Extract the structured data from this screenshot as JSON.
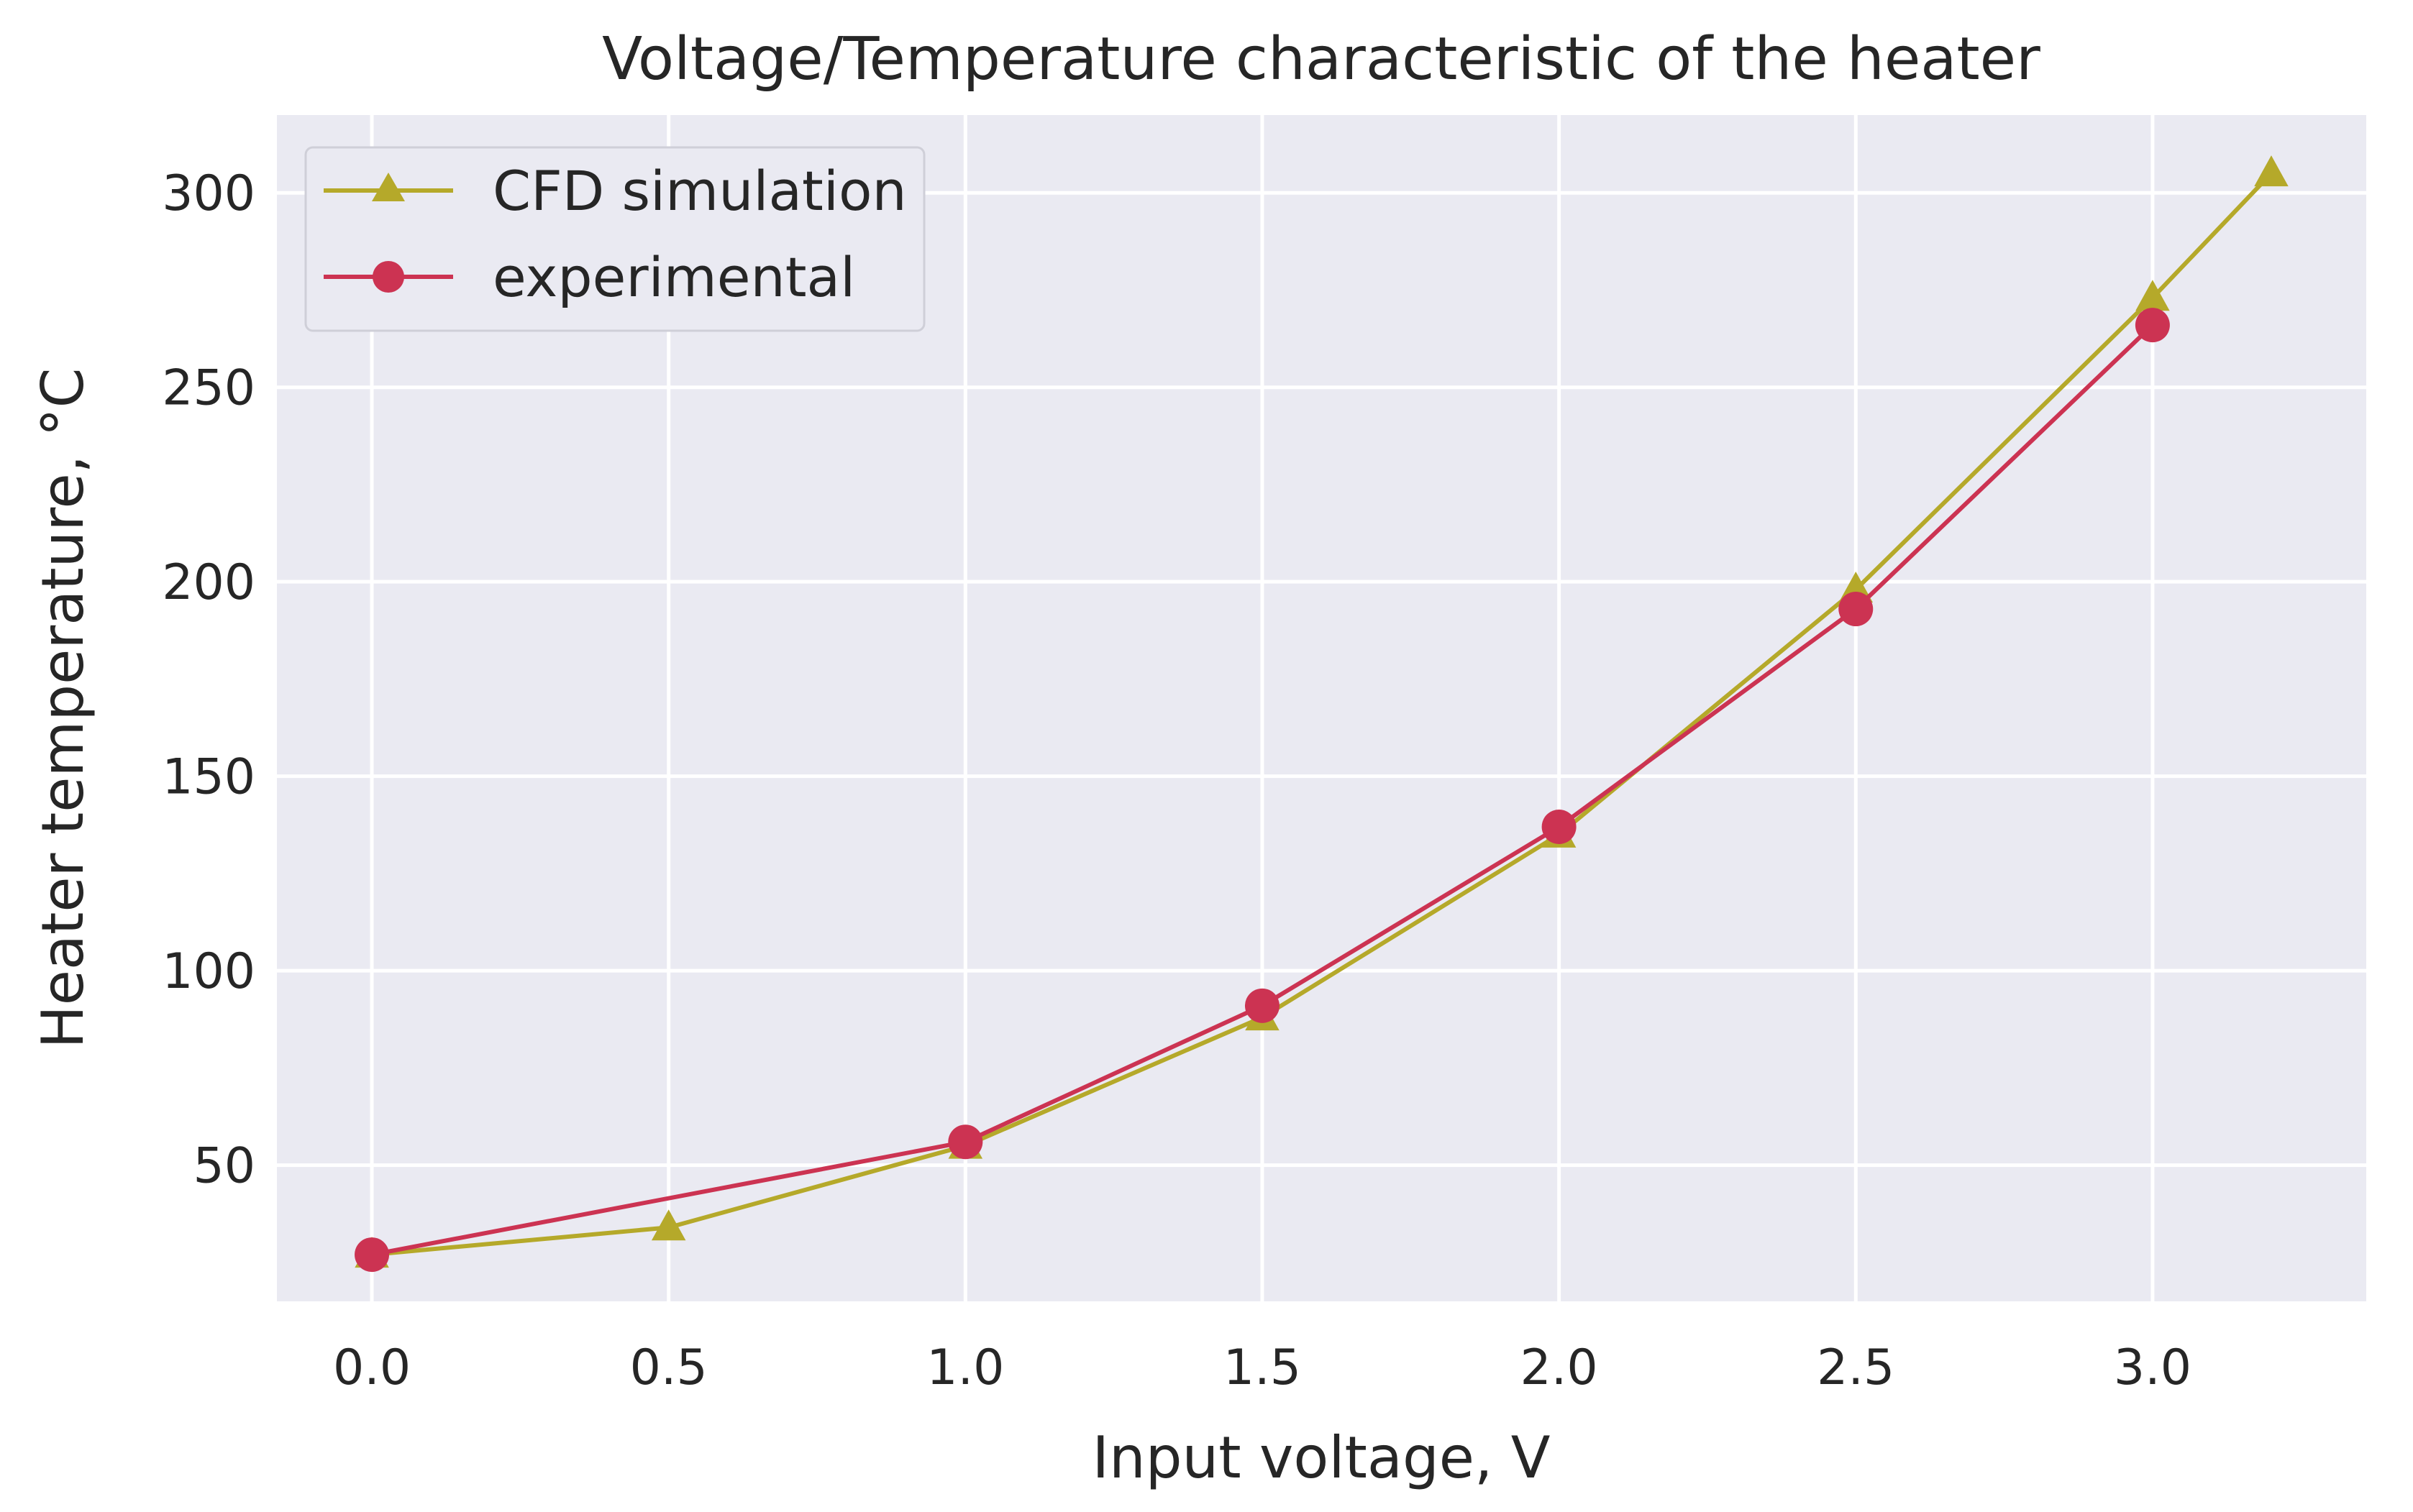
{
  "chart_data": {
    "type": "line",
    "title": "Voltage/Temperature characteristic of the heater",
    "xlabel": "Input voltage, V",
    "ylabel": "Heater temperature, °C",
    "xlim": [
      -0.16,
      3.36
    ],
    "ylim": [
      15,
      320
    ],
    "xticks": [
      0.0,
      0.5,
      1.0,
      1.5,
      2.0,
      2.5,
      3.0
    ],
    "xtick_labels": [
      "0.0",
      "0.5",
      "1.0",
      "1.5",
      "2.0",
      "2.5",
      "3.0"
    ],
    "yticks": [
      50,
      100,
      150,
      200,
      250,
      300
    ],
    "ytick_labels": [
      "50",
      "100",
      "150",
      "200",
      "250",
      "300"
    ],
    "grid": true,
    "legend_position": "top-left",
    "series": [
      {
        "name": "CFD simulation",
        "marker": "triangle",
        "color": "#b5a92a",
        "x": [
          0.0,
          0.5,
          1.0,
          1.5,
          2.0,
          2.5,
          3.0,
          3.2
        ],
        "y": [
          27,
          34,
          55,
          88,
          135,
          198,
          273,
          305
        ]
      },
      {
        "name": "experimental",
        "marker": "circle",
        "color": "#cc3352",
        "x": [
          0.0,
          1.0,
          1.5,
          2.0,
          2.5,
          3.0
        ],
        "y": [
          27,
          56,
          91,
          137,
          193,
          266
        ]
      }
    ]
  },
  "colors": {
    "plot_background": "#eaeaf2",
    "grid": "#ffffff",
    "text": "#262626"
  }
}
